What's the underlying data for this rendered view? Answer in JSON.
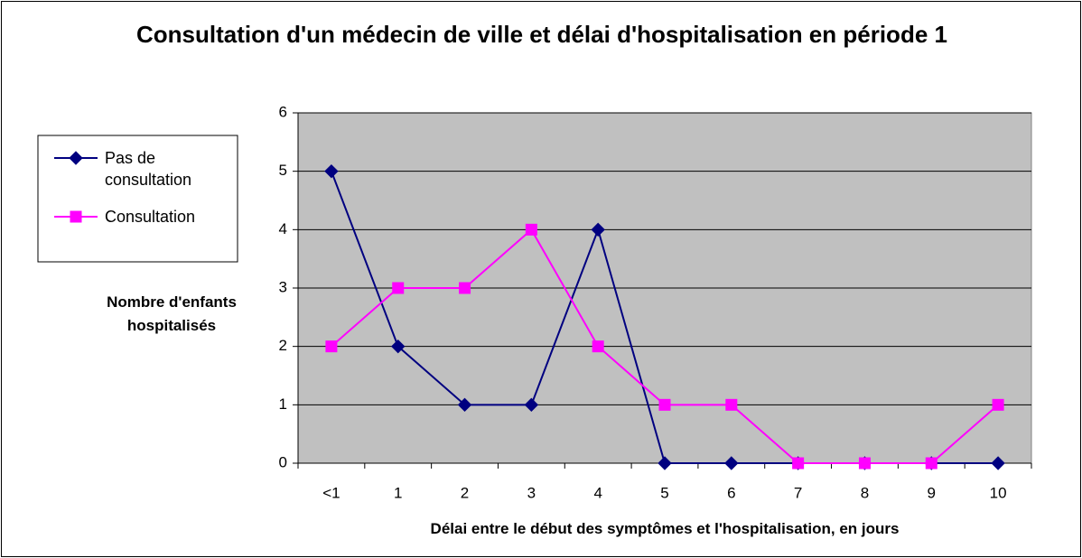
{
  "chart_data": {
    "type": "line",
    "title": "Consultation d'un médecin de ville et délai d'hospitalisation en période 1",
    "x_label": "Délai entre le début des symptômes et l'hospitalisation, en jours",
    "y_label": "Nombre d'enfants hospitalisés",
    "categories": [
      "<1",
      "1",
      "2",
      "3",
      "4",
      "5",
      "6",
      "7",
      "8",
      "9",
      "10"
    ],
    "series": [
      {
        "name": "Pas de consultation",
        "color": "#000080",
        "marker": "diamond",
        "values": [
          5,
          2,
          1,
          1,
          4,
          0,
          0,
          0,
          0,
          0,
          0
        ]
      },
      {
        "name": "Consultation",
        "color": "#ff00ff",
        "marker": "square",
        "values": [
          2,
          3,
          3,
          4,
          2,
          1,
          1,
          0,
          0,
          0,
          1
        ]
      }
    ],
    "ylim": [
      0,
      6
    ],
    "yticks": [
      0,
      1,
      2,
      3,
      4,
      5,
      6
    ],
    "grid": true,
    "legend": "left"
  }
}
